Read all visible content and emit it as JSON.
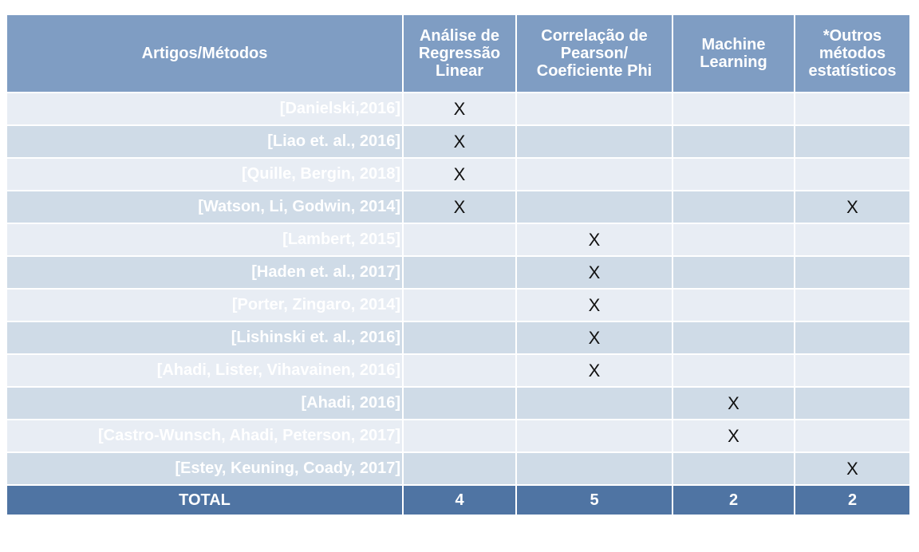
{
  "table": {
    "headers": [
      "Artigos/Métodos",
      "Análise de Regressão Linear",
      "Correlação de Pearson/ Coeficiente Phi",
      "Machine Learning",
      "*Outros métodos estatísticos"
    ],
    "rows": [
      {
        "label": "[Danielski,2016]",
        "marks": [
          "X",
          "",
          "",
          ""
        ]
      },
      {
        "label": "[Liao et. al., 2016]",
        "marks": [
          "X",
          "",
          "",
          ""
        ]
      },
      {
        "label": "[Quille, Bergin, 2018]",
        "marks": [
          "X",
          "",
          "",
          ""
        ]
      },
      {
        "label": "[Watson, Li, Godwin, 2014]",
        "marks": [
          "X",
          "",
          "",
          "X"
        ]
      },
      {
        "label": "[Lambert, 2015]",
        "marks": [
          "",
          "X",
          "",
          ""
        ]
      },
      {
        "label": "[Haden et. al., 2017]",
        "marks": [
          "",
          "X",
          "",
          ""
        ]
      },
      {
        "label": "[Porter, Zingaro, 2014]",
        "marks": [
          "",
          "X",
          "",
          ""
        ]
      },
      {
        "label": "[Lishinski et. al., 2016]",
        "marks": [
          "",
          "X",
          "",
          ""
        ]
      },
      {
        "label": "[Ahadi, Lister, Vihavainen, 2016]",
        "marks": [
          "",
          "X",
          "",
          ""
        ]
      },
      {
        "label": "[Ahadi, 2016]",
        "marks": [
          "",
          "",
          "X",
          ""
        ]
      },
      {
        "label": "[Castro-Wunsch, Ahadi, Peterson, 2017]",
        "marks": [
          "",
          "",
          "X",
          ""
        ]
      },
      {
        "label": "[Estey, Keuning, Coady, 2017]",
        "marks": [
          "",
          "",
          "",
          "X"
        ]
      }
    ],
    "total": {
      "label": "TOTAL",
      "values": [
        "4",
        "5",
        "2",
        "2"
      ]
    }
  },
  "colors": {
    "header_bg": "#7f9dc3",
    "row_light": "#e8edf4",
    "row_dark": "#cfdbe7",
    "total_bg": "#4f74a3",
    "label_text": "#ffffff"
  }
}
